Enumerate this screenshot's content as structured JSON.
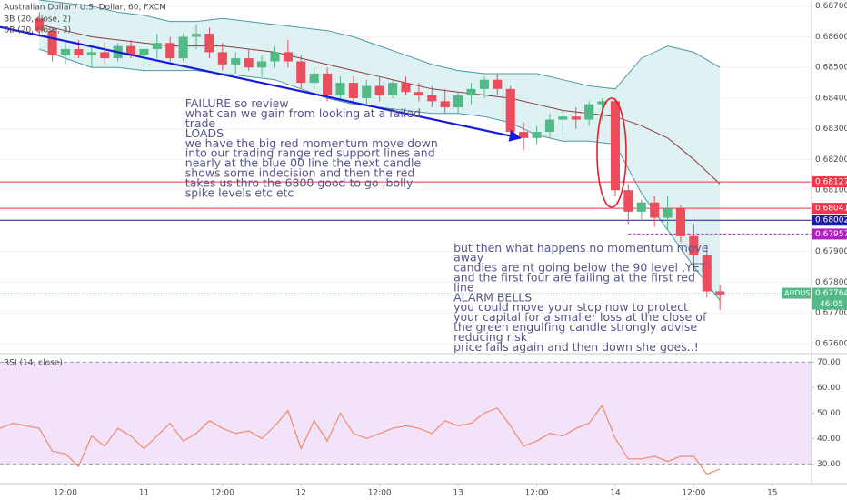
{
  "chart_data": [
    {
      "type": "candlestick",
      "title": "Australian Dollar / U.S. Dollar, 60, FXCM",
      "legend": [
        "BB (20, close, 2)",
        "BB (20, close, 3)"
      ],
      "x": [
        6,
        8,
        10,
        12,
        14,
        16,
        18,
        20,
        22,
        24,
        26,
        28,
        30,
        32,
        34,
        36,
        38,
        40,
        42,
        44,
        46,
        48,
        50,
        52,
        54,
        56,
        58,
        60,
        62,
        64,
        66,
        68,
        70,
        72,
        74,
        76,
        78,
        80,
        82,
        84,
        86,
        88,
        90,
        92,
        94,
        96,
        98,
        100,
        102,
        104,
        106,
        108,
        110
      ],
      "open": [
        0.6866,
        0.6862,
        0.6854,
        0.6856,
        0.6854,
        0.6855,
        0.6853,
        0.6857,
        0.6854,
        0.6856,
        0.6858,
        0.6853,
        0.686,
        0.6861,
        0.6855,
        0.6851,
        0.6853,
        0.685,
        0.6852,
        0.6855,
        0.6852,
        0.6845,
        0.6848,
        0.6841,
        0.6845,
        0.684,
        0.6844,
        0.6841,
        0.6845,
        0.6842,
        0.6841,
        0.6839,
        0.6837,
        0.6841,
        0.6843,
        0.6846,
        0.6843,
        0.6829,
        0.6827,
        0.6829,
        0.6833,
        0.6834,
        0.6833,
        0.6838,
        0.6839,
        0.681,
        0.6803,
        0.6806,
        0.6801,
        0.6804,
        0.6795,
        0.6789,
        0.6777
      ],
      "high": [
        0.6868,
        0.6863,
        0.6858,
        0.6859,
        0.6857,
        0.6858,
        0.6858,
        0.6859,
        0.6857,
        0.6861,
        0.686,
        0.6861,
        0.6864,
        0.6863,
        0.6858,
        0.6855,
        0.6856,
        0.6854,
        0.6857,
        0.6859,
        0.6854,
        0.685,
        0.685,
        0.6847,
        0.6847,
        0.6846,
        0.6847,
        0.6846,
        0.6847,
        0.6845,
        0.6844,
        0.6843,
        0.6842,
        0.6845,
        0.6847,
        0.6848,
        0.6844,
        0.6832,
        0.6831,
        0.6835,
        0.6836,
        0.6837,
        0.6839,
        0.684,
        0.684,
        0.6812,
        0.6807,
        0.6808,
        0.6808,
        0.6805,
        0.6799,
        0.6792,
        0.6779
      ],
      "low": [
        0.686,
        0.6852,
        0.6851,
        0.6853,
        0.685,
        0.6851,
        0.6852,
        0.6853,
        0.685,
        0.6853,
        0.6852,
        0.6852,
        0.6856,
        0.6853,
        0.6849,
        0.6848,
        0.6849,
        0.6847,
        0.685,
        0.685,
        0.6843,
        0.6843,
        0.6839,
        0.6839,
        0.6838,
        0.6838,
        0.6839,
        0.684,
        0.6841,
        0.6839,
        0.6837,
        0.6835,
        0.6835,
        0.6838,
        0.684,
        0.6841,
        0.6827,
        0.6823,
        0.6825,
        0.6827,
        0.6828,
        0.683,
        0.6831,
        0.6833,
        0.6808,
        0.6799,
        0.68,
        0.6798,
        0.6797,
        0.6793,
        0.6786,
        0.6775,
        0.6771
      ],
      "close": [
        0.6862,
        0.6854,
        0.6856,
        0.6854,
        0.6855,
        0.6853,
        0.6857,
        0.6854,
        0.6856,
        0.6858,
        0.6853,
        0.686,
        0.6861,
        0.6855,
        0.6851,
        0.6853,
        0.685,
        0.6852,
        0.6855,
        0.6852,
        0.6845,
        0.6848,
        0.6841,
        0.6845,
        0.684,
        0.6844,
        0.6841,
        0.6845,
        0.6842,
        0.6841,
        0.6839,
        0.6837,
        0.6841,
        0.6843,
        0.6846,
        0.6843,
        0.6829,
        0.6827,
        0.6829,
        0.6833,
        0.6834,
        0.6833,
        0.6838,
        0.6839,
        0.681,
        0.6803,
        0.6806,
        0.6801,
        0.6804,
        0.6795,
        0.6789,
        0.6777,
        0.6776
      ],
      "up_color": "#53b987",
      "down_color": "#eb4d5c",
      "bands": {
        "x": [
          6,
          10,
          14,
          18,
          22,
          26,
          30,
          34,
          38,
          42,
          46,
          50,
          54,
          58,
          62,
          66,
          70,
          74,
          78,
          82,
          86,
          90,
          94,
          98,
          102,
          106,
          110
        ],
        "upper": [
          0.6872,
          0.6871,
          0.687,
          0.6868,
          0.6867,
          0.6865,
          0.6865,
          0.6866,
          0.6865,
          0.6864,
          0.6863,
          0.6862,
          0.686,
          0.6857,
          0.6854,
          0.6851,
          0.6849,
          0.6848,
          0.6848,
          0.6848,
          0.6846,
          0.6844,
          0.6843,
          0.6853,
          0.6857,
          0.6855,
          0.685
        ],
        "basis": [
          0.6864,
          0.6862,
          0.686,
          0.6859,
          0.6858,
          0.6857,
          0.6857,
          0.6857,
          0.6856,
          0.6855,
          0.6853,
          0.6851,
          0.6849,
          0.6847,
          0.6845,
          0.6843,
          0.6842,
          0.6841,
          0.684,
          0.6838,
          0.6836,
          0.6835,
          0.6834,
          0.6831,
          0.6827,
          0.682,
          0.6812
        ],
        "lower": [
          0.6856,
          0.6853,
          0.685,
          0.685,
          0.6849,
          0.6849,
          0.6849,
          0.6848,
          0.6847,
          0.6846,
          0.6843,
          0.684,
          0.6838,
          0.6837,
          0.6836,
          0.6835,
          0.6835,
          0.6834,
          0.6832,
          0.6828,
          0.6826,
          0.6826,
          0.6825,
          0.6809,
          0.6797,
          0.6785,
          0.6774
        ],
        "color": "#4a9aa8",
        "basis_color": "#8b3a3a",
        "fill": "#d6eef0"
      },
      "trend_line": {
        "x": [
          0,
          79.5
        ],
        "values": [
          0.68632,
          0.6827
        ],
        "color": "#1a1ad6"
      },
      "levels": [
        {
          "value": 0.68127,
          "color": "#f23645"
        },
        {
          "value": 0.68041,
          "color": "#f23645"
        },
        {
          "value": 0.68002,
          "color": "#1a1aa6"
        },
        {
          "value": 0.67957,
          "color": "#b020c0",
          "dashed": true,
          "from": 96
        }
      ],
      "current": {
        "name": "AUDUSD",
        "value": 0.67764,
        "countdown": "46:05",
        "color": "#53b987"
      },
      "annotations": [
        {
          "x": 28.3,
          "value": 0.6838,
          "lines": [
            "FAILURE so review",
            "what can we gain from looking at a failed",
            "trade",
            "LOADS",
            "we have the big red momentum move down",
            "into our trading range red support lines and",
            "nearly at the blue 00 line the next candle",
            "shows some indecision and then the red",
            "takes us thro the 6800 good to go ,bolly",
            "spike levels etc etc"
          ]
        },
        {
          "x": 69.3,
          "value": 0.6791,
          "lines": [
            "but then what happens no momentum move",
            "away",
            "candles are nt going below the 90 level ,YET",
            "and the first four are failing at the first red",
            "line",
            "ALARM BELLS",
            "you could move your stop now to protect",
            "your capital for a smaller loss at the close of",
            "the green engulfing candle strongly advise",
            "reducing risk",
            "price fails again and then down she goes..!"
          ]
        }
      ],
      "xlim": [
        0,
        124
      ],
      "ylim": [
        0.6757,
        0.6872
      ],
      "yticks": [
        {
          "value": 0.687,
          "label": "0.68700"
        },
        {
          "value": 0.686,
          "label": "0.68600"
        },
        {
          "value": 0.685,
          "label": "0.68500"
        },
        {
          "value": 0.684,
          "label": "0.68400"
        },
        {
          "value": 0.683,
          "label": "0.68300"
        },
        {
          "value": 0.682,
          "label": "0.68200"
        },
        {
          "value": 0.681,
          "label": "0.68100"
        },
        {
          "value": 0.68,
          "label": "0.68000"
        },
        {
          "value": 0.679,
          "label": "0.67900"
        },
        {
          "value": 0.678,
          "label": "0.67800"
        },
        {
          "value": 0.677,
          "label": "0.67700"
        },
        {
          "value": 0.676,
          "label": "0.67600"
        }
      ]
    },
    {
      "type": "line",
      "title": "RSI (14, close)",
      "x": [
        0,
        2,
        4,
        6,
        8,
        10,
        12,
        14,
        16,
        18,
        20,
        22,
        24,
        26,
        28,
        30,
        32,
        34,
        36,
        38,
        40,
        42,
        44,
        46,
        48,
        50,
        52,
        54,
        56,
        58,
        60,
        62,
        64,
        66,
        68,
        70,
        72,
        74,
        76,
        78,
        80,
        82,
        84,
        86,
        88,
        90,
        92,
        94,
        96,
        98,
        100,
        102,
        104,
        106,
        108,
        110
      ],
      "values": [
        44,
        46,
        45,
        44,
        35,
        34,
        29,
        41,
        37,
        44,
        41,
        36,
        41,
        46,
        39,
        42,
        47,
        44,
        42,
        43,
        40,
        45,
        51,
        36,
        47,
        39,
        50,
        42,
        40,
        42,
        44,
        45,
        44,
        42,
        47,
        45,
        46,
        50,
        52,
        45,
        37,
        39,
        42,
        41,
        44,
        46,
        53,
        40,
        32,
        32,
        33,
        31,
        33,
        33,
        26,
        28
      ],
      "color": "#f08a6a",
      "band": [
        30,
        70
      ],
      "band_color": "#f3e3fa",
      "xlim": [
        0,
        124
      ],
      "ylim": [
        23,
        73
      ],
      "yticks": [
        {
          "value": 30,
          "label": "30.00"
        },
        {
          "value": 40,
          "label": "40.00"
        },
        {
          "value": 50,
          "label": "50.00"
        },
        {
          "value": 60,
          "label": "60.00"
        },
        {
          "value": 70,
          "label": "70.00"
        }
      ],
      "xticks": [
        {
          "value": 10,
          "label": "12:00"
        },
        {
          "value": 22,
          "label": "11"
        },
        {
          "value": 34,
          "label": "12:00"
        },
        {
          "value": 46,
          "label": "12"
        },
        {
          "value": 58,
          "label": "12:00"
        },
        {
          "value": 70,
          "label": "13"
        },
        {
          "value": 82,
          "label": "12:00"
        },
        {
          "value": 94,
          "label": "14"
        },
        {
          "value": 106,
          "label": "12:00"
        },
        {
          "value": 118,
          "label": "15"
        }
      ]
    }
  ]
}
